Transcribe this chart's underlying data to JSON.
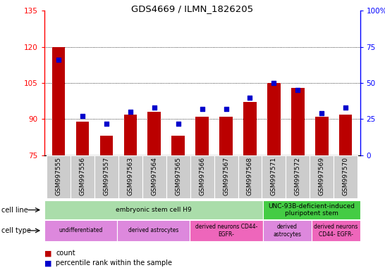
{
  "title": "GDS4669 / ILMN_1826205",
  "samples": [
    "GSM997555",
    "GSM997556",
    "GSM997557",
    "GSM997563",
    "GSM997564",
    "GSM997565",
    "GSM997566",
    "GSM997567",
    "GSM997568",
    "GSM997571",
    "GSM997572",
    "GSM997569",
    "GSM997570"
  ],
  "count_values": [
    120,
    89,
    83,
    92,
    93,
    83,
    91,
    91,
    97,
    105,
    103,
    91,
    92
  ],
  "percentile_values": [
    66,
    27,
    22,
    30,
    33,
    22,
    32,
    32,
    40,
    50,
    45,
    29,
    33
  ],
  "ylim_left": [
    75,
    135
  ],
  "ylim_right": [
    0,
    100
  ],
  "yticks_left": [
    75,
    90,
    105,
    120,
    135
  ],
  "yticks_right": [
    0,
    25,
    50,
    75,
    100
  ],
  "bar_color": "#bb0000",
  "dot_color": "#0000cc",
  "bar_bottom": 75,
  "cell_line_data": [
    {
      "label": "embryonic stem cell H9",
      "start": 0,
      "end": 9,
      "color": "#aaddaa"
    },
    {
      "label": "UNC-93B-deficient-induced\npluripotent stem",
      "start": 9,
      "end": 13,
      "color": "#44cc44"
    }
  ],
  "cell_type_data": [
    {
      "label": "undifferentiated",
      "start": 0,
      "end": 3,
      "color": "#dd88dd"
    },
    {
      "label": "derived astrocytes",
      "start": 3,
      "end": 6,
      "color": "#dd88dd"
    },
    {
      "label": "derived neurons CD44-\nEGFR-",
      "start": 6,
      "end": 9,
      "color": "#ee66bb"
    },
    {
      "label": "derived\nastrocytes",
      "start": 9,
      "end": 11,
      "color": "#dd88dd"
    },
    {
      "label": "derived neurons\nCD44- EGFR-",
      "start": 11,
      "end": 13,
      "color": "#ee66bb"
    }
  ],
  "grid_yticks": [
    90,
    105,
    120
  ],
  "bar_width": 0.55
}
